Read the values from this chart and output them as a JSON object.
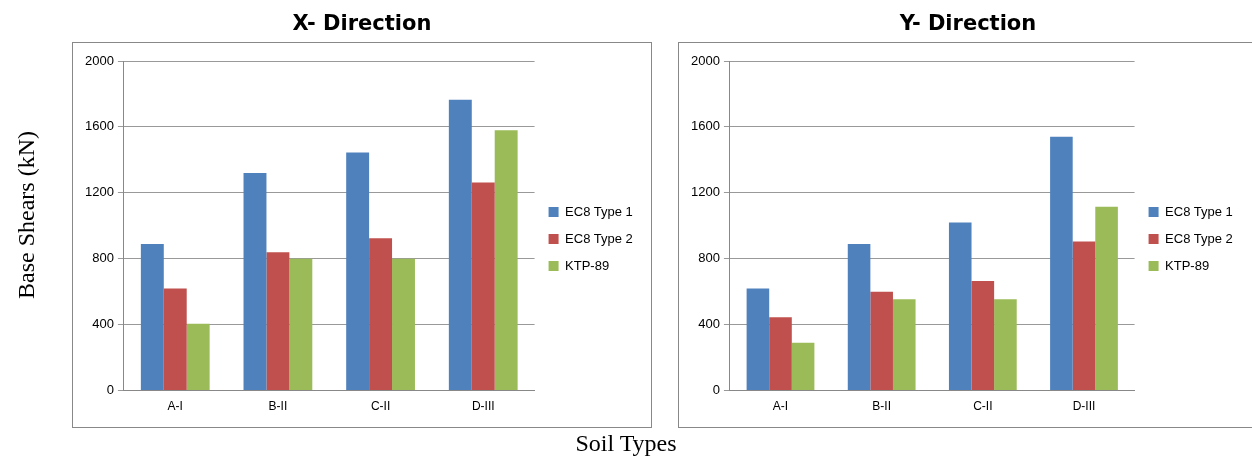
{
  "chart_data": [
    {
      "type": "bar",
      "title": "X- Direction",
      "ylabel": "Base Shears (kN)",
      "xlabel": "Soil Types",
      "categories": [
        "A-I",
        "B-II",
        "C-II",
        "D-III"
      ],
      "series": [
        {
          "name": "EC8 Type 1",
          "color": "#4f81bd",
          "values": [
            890,
            1320,
            1445,
            1765
          ]
        },
        {
          "name": "EC8 Type 2",
          "color": "#c0504d",
          "values": [
            620,
            840,
            925,
            1262
          ]
        },
        {
          "name": "KTP-89",
          "color": "#9bbb59",
          "values": [
            405,
            800,
            800,
            1580
          ]
        }
      ],
      "ylim": [
        0,
        2000
      ],
      "yticks": [
        0,
        400,
        800,
        1200,
        1600,
        2000
      ],
      "grid": "y",
      "legend": "right"
    },
    {
      "type": "bar",
      "title": "Y- Direction",
      "categories": [
        "A-I",
        "B-II",
        "C-II",
        "D-III"
      ],
      "series": [
        {
          "name": "EC8 Type 1",
          "color": "#4f81bd",
          "values": [
            620,
            890,
            1020,
            1540
          ]
        },
        {
          "name": "EC8 Type 2",
          "color": "#c0504d",
          "values": [
            445,
            600,
            665,
            905
          ]
        },
        {
          "name": "KTP-89",
          "color": "#9bbb59",
          "values": [
            290,
            555,
            555,
            1115
          ]
        }
      ],
      "ylim": [
        0,
        2000
      ],
      "yticks": [
        0,
        400,
        800,
        1200,
        1600,
        2000
      ],
      "grid": "y",
      "legend": "right"
    }
  ]
}
